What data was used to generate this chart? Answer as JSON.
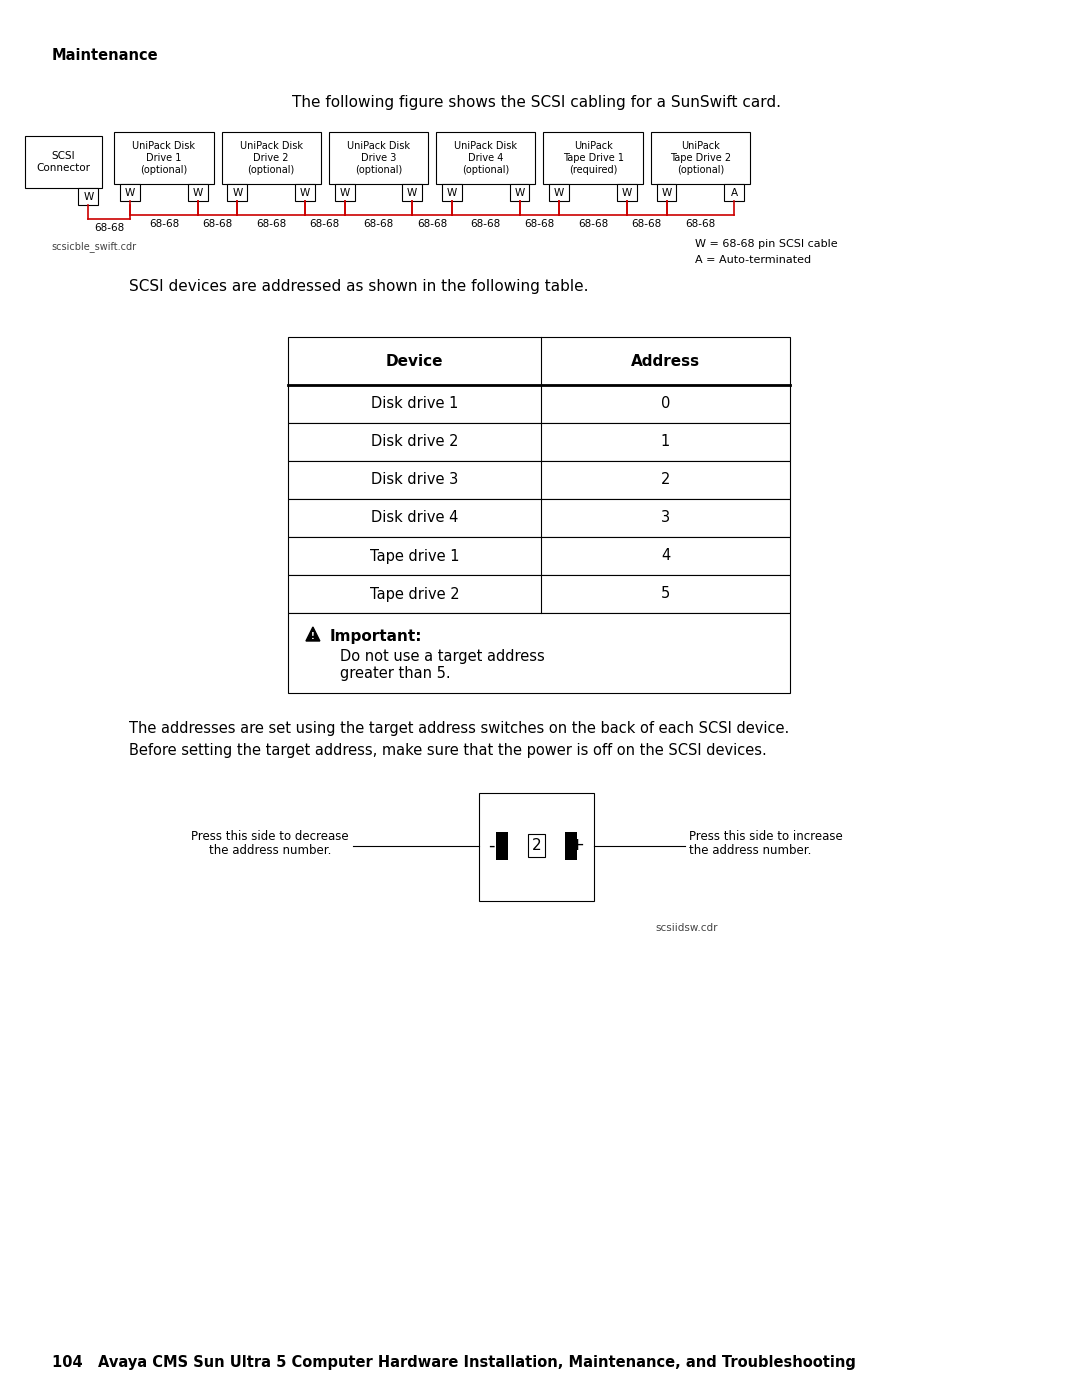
{
  "bg_color": "#ffffff",
  "page_width": 10.8,
  "page_height": 13.97,
  "maintenance_text": "Maintenance",
  "intro_text": "The following figure shows the SCSI cabling for a SunSwift card.",
  "scsi_connector_label": "SCSI\nConnector",
  "devices": [
    {
      "label": "UniPack Disk\nDrive 1\n(optional)",
      "connectors": [
        "W",
        "W"
      ],
      "cable": "68-68"
    },
    {
      "label": "UniPack Disk\nDrive 2\n(optional)",
      "connectors": [
        "W",
        "W"
      ],
      "cable": "68-68"
    },
    {
      "label": "UniPack Disk\nDrive 3\n(optional)",
      "connectors": [
        "W",
        "W"
      ],
      "cable": "68-68"
    },
    {
      "label": "UniPack Disk\nDrive 4\n(optional)",
      "connectors": [
        "W",
        "W"
      ],
      "cable": "68-68"
    },
    {
      "label": "UniPack\nTape Drive 1\n(required)",
      "connectors": [
        "W",
        "W"
      ],
      "cable": "68-68"
    },
    {
      "label": "UniPack\nTape Drive 2\n(optional)",
      "connectors": [
        "W",
        "A"
      ],
      "cable": "68-68"
    }
  ],
  "legend_text1": "W = 68-68 pin SCSI cable",
  "legend_text2": "A = Auto-terminated",
  "filename1": "scsicble_swift.cdr",
  "table_intro": "SCSI devices are addressed as shown in the following table.",
  "table_headers": [
    "Device",
    "Address"
  ],
  "table_rows": [
    [
      "Disk drive 1",
      "0"
    ],
    [
      "Disk drive 2",
      "1"
    ],
    [
      "Disk drive 3",
      "2"
    ],
    [
      "Disk drive 4",
      "3"
    ],
    [
      "Tape drive 1",
      "4"
    ],
    [
      "Tape drive 2",
      "5"
    ]
  ],
  "important_text": "Important:",
  "important_note": "Do not use a target address\ngreater than 5.",
  "address_para1": "The addresses are set using the target address switches on the back of each SCSI device.",
  "address_para2": "Before setting the target address, make sure that the power is off on the SCSI devices.",
  "decrease_label": "Press this side to decrease\nthe address number.",
  "increase_label": "Press this side to increase\nthe address number.",
  "switch_value": "2",
  "filename2": "scsiidsw.cdr",
  "footer_text": "104   Avaya CMS Sun Ultra 5 Computer Hardware Installation, Maintenance, and Troubleshooting"
}
